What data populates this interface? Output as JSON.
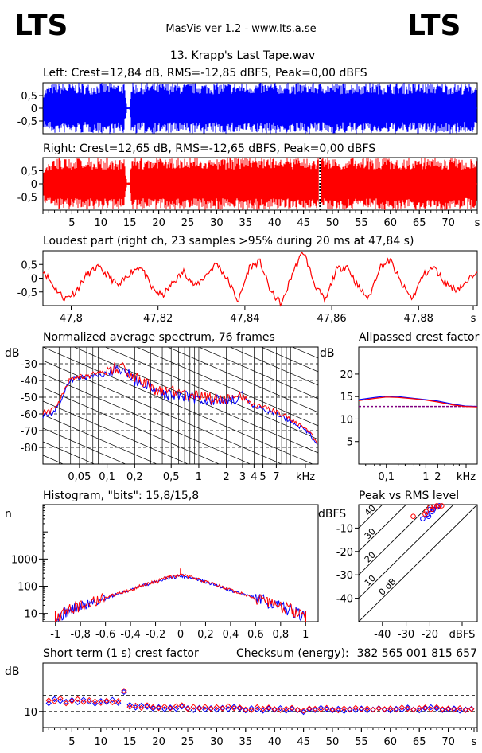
{
  "header": {
    "logo_left": "LTS",
    "logo_right": "LTS",
    "app_title": "MasVis ver 1.2 - www.lts.a.se",
    "file_title": "13. Krapp's Last Tape.wav"
  },
  "colors": {
    "left": "#0000ff",
    "right": "#ff0000",
    "marker": "#000000",
    "axis": "#000000",
    "grid": "#000000"
  },
  "chart_data": [
    {
      "id": "left_waveform",
      "type": "area",
      "title": "Left: Crest=12,84 dB, RMS=-12,85 dBFS, Peak=0,00 dBFS",
      "ylim": [
        -1,
        1
      ],
      "yticks": [
        "0,5",
        "0",
        "-0,5"
      ],
      "ytick_values": [
        0.5,
        0,
        -0.5
      ],
      "xlim": [
        0,
        75
      ],
      "series": [
        {
          "name": "Left",
          "envelope_x": [
            0,
            1,
            2,
            4,
            6,
            8,
            10,
            12,
            14,
            14.5,
            15,
            15.2,
            20,
            30,
            40,
            50,
            60,
            70,
            75
          ],
          "envelope_peak": [
            0.75,
            0.9,
            1.0,
            0.98,
            1.0,
            0.97,
            1.0,
            0.99,
            1.0,
            0.05,
            0.05,
            1.0,
            1.0,
            1.0,
            1.0,
            1.0,
            1.0,
            1.0,
            0.95
          ]
        }
      ]
    },
    {
      "id": "right_waveform",
      "type": "area",
      "title": "Right: Crest=12,65 dB, RMS=-12,65 dBFS, Peak=0,00 dBFS",
      "ylim": [
        -1,
        1
      ],
      "yticks": [
        "0,5",
        "0",
        "-0,5"
      ],
      "ytick_values": [
        0.5,
        0,
        -0.5
      ],
      "xlim": [
        0,
        75
      ],
      "xticks": [
        "5",
        "10",
        "15",
        "20",
        "25",
        "30",
        "35",
        "40",
        "45",
        "50",
        "55",
        "60",
        "65",
        "70",
        "s"
      ],
      "xtick_values": [
        5,
        10,
        15,
        20,
        25,
        30,
        35,
        40,
        45,
        50,
        55,
        60,
        65,
        70,
        75
      ],
      "loudest_marker_s": 47.84,
      "series": [
        {
          "name": "Right",
          "envelope_x": [
            0,
            1,
            2,
            4,
            6,
            8,
            10,
            12,
            14,
            14.5,
            15,
            15.2,
            20,
            30,
            40,
            50,
            60,
            70,
            75
          ],
          "envelope_peak": [
            0.75,
            0.9,
            1.0,
            0.98,
            1.0,
            0.97,
            1.0,
            0.99,
            1.0,
            0.05,
            0.05,
            1.0,
            1.0,
            1.0,
            1.0,
            1.0,
            1.0,
            1.0,
            0.95
          ]
        }
      ]
    },
    {
      "id": "loudest_part",
      "type": "line",
      "title": "Loudest part (right ch, 23 samples >95% during 20 ms at 47,84 s)",
      "ylim": [
        -1,
        1
      ],
      "yticks": [
        "0,5",
        "0",
        "-0,5"
      ],
      "ytick_values": [
        0.5,
        0,
        -0.5
      ],
      "xlim": [
        47.7935,
        47.8935
      ],
      "xticks": [
        "47,8",
        "47,82",
        "47,84",
        "47,86",
        "47,88",
        "s"
      ],
      "xtick_values": [
        47.8,
        47.82,
        47.84,
        47.86,
        47.88,
        47.8935
      ],
      "series": [
        {
          "name": "Right",
          "x": [
            47.7935,
            47.796,
            47.7985,
            47.801,
            47.8035,
            47.806,
            47.8085,
            47.811,
            47.8135,
            47.816,
            47.8185,
            47.821,
            47.8235,
            47.826,
            47.8285,
            47.831,
            47.8335,
            47.836,
            47.8385,
            47.841,
            47.8435,
            47.846,
            47.8485,
            47.851,
            47.8535,
            47.856,
            47.8585,
            47.861,
            47.8635,
            47.866,
            47.8685,
            47.871,
            47.8735,
            47.876,
            47.8785,
            47.881,
            47.8835,
            47.886,
            47.8885,
            47.891,
            47.8935
          ],
          "y": [
            0.3,
            -0.3,
            -0.75,
            -0.5,
            0.1,
            0.4,
            0.1,
            -0.3,
            0.2,
            0.45,
            -0.35,
            -0.65,
            -0.15,
            0.25,
            -0.3,
            0.1,
            0.55,
            -0.05,
            -0.85,
            0.4,
            0.6,
            -0.5,
            -0.95,
            0.2,
            1.0,
            -0.2,
            -0.85,
            0.3,
            0.45,
            -0.3,
            -0.75,
            0.4,
            0.65,
            -0.2,
            -0.75,
            0.1,
            0.4,
            -0.15,
            -0.4,
            -0.2,
            0.35
          ]
        }
      ]
    },
    {
      "id": "spectrum",
      "type": "line",
      "title": "Normalized average spectrum, 76 frames",
      "ylabel": "dB",
      "xlabel": "kHz",
      "ylim": [
        -90,
        -20
      ],
      "yticks": [
        "-30",
        "-40",
        "-50",
        "-60",
        "-70",
        "-80"
      ],
      "ytick_values": [
        -30,
        -40,
        -50,
        -60,
        -70,
        -80
      ],
      "xscale": "log",
      "xlim": [
        0.02,
        20
      ],
      "xticks": [
        "0,05",
        "0,1",
        "0,2",
        "0,5",
        "1",
        "2",
        "3",
        "4",
        "5",
        "7",
        "kHz"
      ],
      "xtick_values": [
        0.05,
        0.1,
        0.2,
        0.5,
        1,
        2,
        3,
        4,
        5,
        7,
        14
      ],
      "series": [
        {
          "name": "Left",
          "x": [
            0.02,
            0.025,
            0.03,
            0.035,
            0.04,
            0.05,
            0.06,
            0.07,
            0.08,
            0.1,
            0.12,
            0.15,
            0.17,
            0.2,
            0.25,
            0.3,
            0.4,
            0.5,
            0.7,
            1,
            1.5,
            2,
            3,
            4,
            5,
            7,
            10,
            15,
            20
          ],
          "y": [
            -61,
            -60,
            -54,
            -45,
            -40,
            -38,
            -39,
            -37,
            -37,
            -36,
            -33,
            -36,
            -35,
            -40,
            -42,
            -45,
            -48,
            -48,
            -49,
            -51,
            -52,
            -52,
            -50,
            -56,
            -57,
            -60,
            -64,
            -70,
            -78
          ]
        },
        {
          "name": "Right",
          "x": [
            0.02,
            0.025,
            0.03,
            0.035,
            0.04,
            0.05,
            0.06,
            0.07,
            0.08,
            0.1,
            0.12,
            0.15,
            0.17,
            0.2,
            0.25,
            0.3,
            0.4,
            0.5,
            0.7,
            1,
            1.5,
            2,
            3,
            4,
            5,
            7,
            10,
            15,
            20
          ],
          "y": [
            -59,
            -58,
            -53,
            -44,
            -39,
            -37,
            -38,
            -36,
            -36,
            -35,
            -32,
            -33,
            -35,
            -38,
            -41,
            -44,
            -47,
            -46,
            -48,
            -50,
            -51,
            -51,
            -49,
            -55,
            -56,
            -59,
            -63,
            -69,
            -77
          ]
        }
      ]
    },
    {
      "id": "allpassed_crest",
      "type": "line",
      "title": "Allpassed crest factor",
      "ylabel": "dB",
      "xlabel": "kHz",
      "ylim": [
        0,
        26
      ],
      "yticks": [
        "20",
        "15",
        "10",
        "5"
      ],
      "ytick_values": [
        20,
        15,
        10,
        5
      ],
      "xscale": "log",
      "xlim": [
        0.02,
        20
      ],
      "xticks": [
        "0,1",
        "1",
        "2",
        "kHz"
      ],
      "xtick_values": [
        0.1,
        1,
        2,
        10
      ],
      "reference_db": 12.8,
      "series": [
        {
          "name": "Left",
          "x": [
            0.02,
            0.05,
            0.1,
            0.2,
            0.5,
            1,
            2,
            5,
            10,
            20
          ],
          "y": [
            14.3,
            14.8,
            15.1,
            15.0,
            14.6,
            14.3,
            14.0,
            13.3,
            12.9,
            12.8
          ]
        },
        {
          "name": "Right",
          "x": [
            0.02,
            0.05,
            0.1,
            0.2,
            0.5,
            1,
            2,
            5,
            10,
            20
          ],
          "y": [
            14.1,
            14.6,
            14.9,
            14.8,
            14.5,
            14.2,
            13.8,
            13.1,
            12.8,
            12.7
          ]
        }
      ]
    },
    {
      "id": "histogram",
      "type": "line",
      "title": "Histogram, \"bits\": 15,8/15,8",
      "ylabel": "n",
      "yscale": "log",
      "ylim": [
        5,
        100000
      ],
      "yticks": [
        "1000",
        "100",
        "10"
      ],
      "ytick_values": [
        1000,
        100,
        10
      ],
      "xlim": [
        -1.1,
        1.1
      ],
      "xticks": [
        "-1",
        "-0,8",
        "-0,6",
        "-0,4",
        "-0,2",
        "0",
        "0,2",
        "0,4",
        "0,6",
        "0,8",
        "1"
      ],
      "xtick_values": [
        -1,
        -0.8,
        -0.6,
        -0.4,
        -0.2,
        0,
        0.2,
        0.4,
        0.6,
        0.8,
        1
      ],
      "series": [
        {
          "name": "Left",
          "x": [
            -1,
            -0.95,
            -0.9,
            -0.8,
            -0.6,
            -0.4,
            -0.2,
            -0.1,
            0,
            0.1,
            0.2,
            0.4,
            0.6,
            0.8,
            0.9,
            0.95,
            1
          ],
          "y": [
            6,
            9,
            12,
            17,
            35,
            70,
            140,
            200,
            240,
            200,
            140,
            70,
            35,
            17,
            12,
            9,
            6
          ]
        },
        {
          "name": "Right",
          "x": [
            -1,
            -0.95,
            -0.9,
            -0.8,
            -0.6,
            -0.4,
            -0.2,
            -0.1,
            0,
            0.1,
            0.2,
            0.4,
            0.6,
            0.8,
            0.9,
            0.95,
            1
          ],
          "y": [
            7,
            10,
            13,
            18,
            36,
            72,
            145,
            210,
            260,
            210,
            145,
            72,
            36,
            18,
            13,
            10,
            7
          ]
        }
      ]
    },
    {
      "id": "peak_vs_rms",
      "type": "scatter",
      "title": "Peak vs RMS level",
      "ylabel": "dBFS",
      "xlabel": "dBFS",
      "xlim": [
        -50,
        0
      ],
      "ylim": [
        -50,
        0
      ],
      "xticks": [
        "-40",
        "-30",
        "-20",
        "dBFS"
      ],
      "xtick_values": [
        -40,
        -30,
        -20,
        -10
      ],
      "yticks": [
        "-10",
        "-20",
        "-30",
        "-40"
      ],
      "ytick_values": [
        -10,
        -20,
        -30,
        -40
      ],
      "crest_lines": [
        "40",
        "30",
        "20",
        "10",
        "0 dB"
      ],
      "crest_line_values": [
        40,
        30,
        20,
        10,
        0
      ],
      "series": [
        {
          "name": "Left",
          "x": [
            -23,
            -21,
            -20,
            -19,
            -18,
            -17,
            -16,
            -20.5,
            -18.5
          ],
          "y": [
            -6,
            -4,
            -2,
            -3,
            -1,
            -1,
            -0.5,
            -5,
            -2
          ]
        },
        {
          "name": "Right",
          "x": [
            -27,
            -22,
            -20,
            -19,
            -18,
            -17,
            -15,
            -21.5,
            -16.5
          ],
          "y": [
            -5,
            -4,
            -1,
            -2,
            -1,
            -0.5,
            -0.5,
            -3,
            -1
          ]
        }
      ]
    },
    {
      "id": "short_term_crest",
      "type": "scatter",
      "title": "Short term (1 s) crest factor",
      "checksum_label": "Checksum (energy):",
      "checksum_value": "382 565 001 815 657",
      "ylabel": "dB",
      "ylim": [
        5,
        25
      ],
      "yticks": [
        "10"
      ],
      "ytick_values": [
        10
      ],
      "xlim": [
        0,
        75
      ],
      "xticks": [
        "5",
        "10",
        "15",
        "20",
        "25",
        "30",
        "35",
        "40",
        "45",
        "50",
        "55",
        "60",
        "65",
        "70",
        "s"
      ],
      "xtick_values": [
        5,
        10,
        15,
        20,
        25,
        30,
        35,
        40,
        45,
        50,
        55,
        60,
        65,
        70,
        75
      ],
      "series": [
        {
          "name": "Left",
          "x": [
            1,
            2,
            3,
            4,
            5,
            6,
            7,
            8,
            9,
            10,
            11,
            12,
            13,
            14,
            15,
            16,
            17,
            18,
            19,
            20,
            21,
            22,
            23,
            24,
            25,
            26,
            27,
            28,
            29,
            30,
            31,
            32,
            33,
            34,
            35,
            36,
            37,
            38,
            39,
            40,
            41,
            42,
            43,
            44,
            45,
            46,
            47,
            48,
            49,
            50,
            51,
            52,
            53,
            54,
            55,
            56,
            57,
            58,
            59,
            60,
            61,
            62,
            63,
            64,
            65,
            66,
            67,
            68,
            69,
            70,
            71,
            72,
            73,
            74
          ],
          "y": [
            12.5,
            13.8,
            13.2,
            13.0,
            13.5,
            12.8,
            13.6,
            13.0,
            12.4,
            13.2,
            12.9,
            13.6,
            12.6,
            16.0,
            12.0,
            11.2,
            11.8,
            11.4,
            10.9,
            11.3,
            10.7,
            11.2,
            10.8,
            11.5,
            11.0,
            10.4,
            11.1,
            10.6,
            11.0,
            10.5,
            11.1,
            10.7,
            11.4,
            10.9,
            10.3,
            11.0,
            10.6,
            10.2,
            10.9,
            10.5,
            11.0,
            10.2,
            10.8,
            10.4,
            9.8,
            10.6,
            10.4,
            11.1,
            10.7,
            10.3,
            10.8,
            10.1,
            10.7,
            10.4,
            10.9,
            10.3,
            10.6,
            11.0,
            10.5,
            10.3,
            10.8,
            10.5,
            11.2,
            10.6,
            10.3,
            10.9,
            11.3,
            10.9,
            10.4,
            10.6,
            10.9,
            10.2,
            10.6,
            10.8
          ]
        },
        {
          "name": "Right",
          "x": [
            1,
            2,
            3,
            4,
            5,
            6,
            7,
            8,
            9,
            10,
            11,
            12,
            13,
            14,
            15,
            16,
            17,
            18,
            19,
            20,
            21,
            22,
            23,
            24,
            25,
            26,
            27,
            28,
            29,
            30,
            31,
            32,
            33,
            34,
            35,
            36,
            37,
            38,
            39,
            40,
            41,
            42,
            43,
            44,
            45,
            46,
            47,
            48,
            49,
            50,
            51,
            52,
            53,
            54,
            55,
            56,
            57,
            58,
            59,
            60,
            61,
            62,
            63,
            64,
            65,
            66,
            67,
            68,
            69,
            70,
            71,
            72,
            73,
            74
          ],
          "y": [
            13.4,
            13.1,
            14.0,
            12.5,
            13.2,
            13.8,
            12.9,
            13.5,
            13.1,
            12.6,
            13.3,
            12.8,
            13.2,
            16.4,
            11.4,
            11.8,
            11.1,
            11.9,
            11.3,
            11.0,
            11.5,
            10.9,
            11.6,
            11.9,
            10.8,
            11.4,
            10.9,
            11.4,
            10.8,
            11.3,
            10.9,
            11.6,
            11.0,
            11.2,
            10.6,
            10.4,
            11.3,
            10.8,
            11.2,
            10.7,
            10.4,
            10.8,
            11.1,
            10.5,
            10.2,
            10.9,
            10.8,
            10.6,
            11.1,
            10.6,
            10.3,
            10.9,
            10.5,
            11.1,
            10.6,
            10.9,
            10.5,
            10.9,
            10.7,
            10.9,
            10.5,
            11.2,
            10.8,
            10.5,
            11.0,
            11.2,
            10.6,
            11.3,
            10.7,
            10.9,
            10.5,
            11.0,
            10.4,
            10.7
          ]
        }
      ]
    }
  ]
}
